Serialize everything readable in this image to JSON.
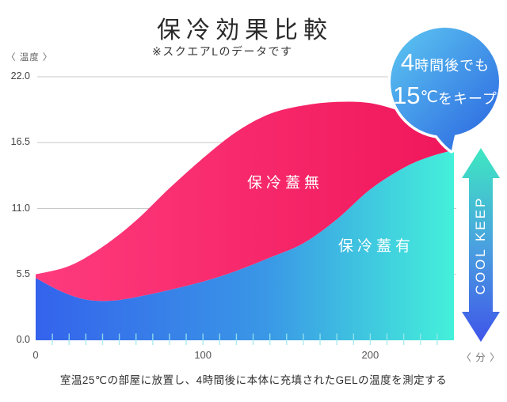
{
  "title": "保冷効果比較",
  "subtitle": "※スクエアLのデータです",
  "badge": {
    "line1_num": "4",
    "line1_text": "時間後でも",
    "line2_num": "15",
    "line2_unit": "℃",
    "line2_text": "をキープ"
  },
  "arrow_label": "COOL KEEP",
  "caption": "室温25℃の部屋に放置し、4時間後に本体に充填されたGELの温度を測定する",
  "colors": {
    "pink_left": "#fe3b7d",
    "pink_right": "#f0175b",
    "blue_left": "#3463ec",
    "blue_mid": "#3a97e6",
    "blue_right": "#44f0da",
    "badge_light": "#5ac2f0",
    "badge_dark": "#2f6de2",
    "arrow_top": "#3ee8c1",
    "arrow_mid": "#4a9fe0",
    "arrow_bottom": "#3f55e9",
    "gridline": "#c9c9c9",
    "minor_tick": "#9be9ee"
  },
  "chart_data": {
    "type": "area",
    "title": "保冷効果比較",
    "xlabel": "〈 分 〉",
    "ylabel": "〈 温度 〉",
    "x_range": [
      0,
      250
    ],
    "y_range": [
      0,
      22
    ],
    "x_ticks": [
      0,
      100,
      200
    ],
    "y_ticks": [
      22.0,
      16.5,
      11.0,
      5.5,
      0.0
    ],
    "minor_x_tick_step": 10,
    "grid": "horizontal",
    "legend_position": "inside-areas",
    "annotation": "4時間後でも15℃をキープ (240分時点)",
    "series": [
      {
        "name": "保冷蓋無",
        "points": [
          [
            0,
            5.5
          ],
          [
            20,
            6.2
          ],
          [
            40,
            7.8
          ],
          [
            60,
            10.0
          ],
          [
            80,
            12.7
          ],
          [
            100,
            15.2
          ],
          [
            120,
            17.4
          ],
          [
            140,
            18.9
          ],
          [
            160,
            19.6
          ],
          [
            180,
            19.9
          ],
          [
            200,
            19.8
          ],
          [
            220,
            19.0
          ],
          [
            235,
            17.9
          ],
          [
            250,
            16.4
          ]
        ]
      },
      {
        "name": "保冷蓋有",
        "points": [
          [
            0,
            5.2
          ],
          [
            15,
            4.1
          ],
          [
            30,
            3.4
          ],
          [
            45,
            3.3
          ],
          [
            60,
            3.6
          ],
          [
            80,
            4.2
          ],
          [
            100,
            4.9
          ],
          [
            120,
            5.8
          ],
          [
            140,
            6.9
          ],
          [
            160,
            8.1
          ],
          [
            180,
            10.1
          ],
          [
            200,
            12.6
          ],
          [
            220,
            14.4
          ],
          [
            235,
            15.3
          ],
          [
            250,
            15.9
          ]
        ]
      }
    ]
  }
}
